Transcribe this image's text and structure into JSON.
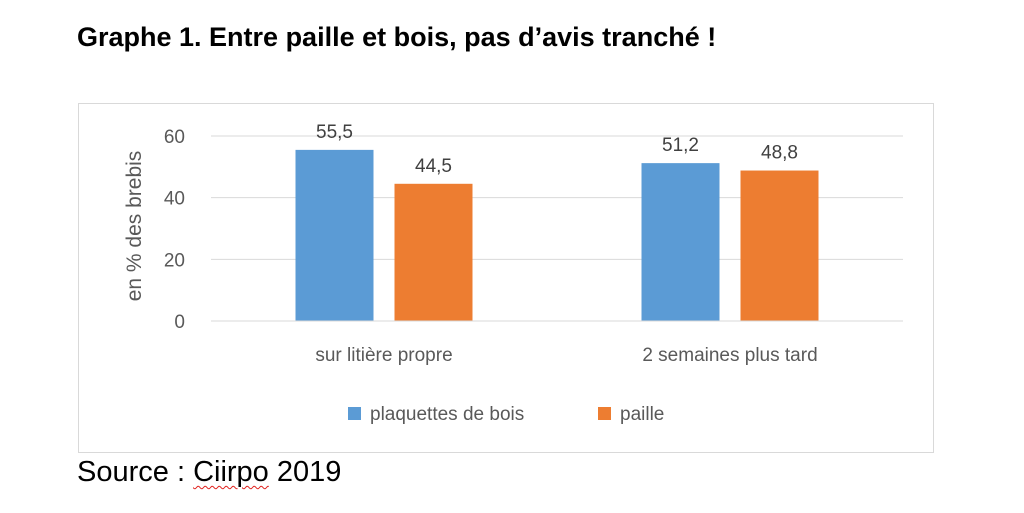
{
  "title": "Graphe 1. Entre paille et bois, pas d’avis tranché !",
  "source": {
    "prefix": "Source : ",
    "org": "Ciirpo",
    "year": " 2019"
  },
  "chart_data": {
    "type": "bar",
    "categories": [
      "sur litière propre",
      "2 semaines plus tard"
    ],
    "series": [
      {
        "name": "plaquettes de bois",
        "values": [
          55.5,
          51.2
        ],
        "labels": [
          "55,5",
          "51,2"
        ],
        "color": "#5b9bd5"
      },
      {
        "name": "paille",
        "values": [
          44.5,
          48.8
        ],
        "labels": [
          "44,5",
          "48,8"
        ],
        "color": "#ed7d31"
      }
    ],
    "xlabel": "",
    "ylabel": "en % des brebis",
    "ylim": [
      0,
      60
    ],
    "yticks": [
      0,
      20,
      40,
      60
    ],
    "grid": true,
    "legend": "bottom"
  }
}
